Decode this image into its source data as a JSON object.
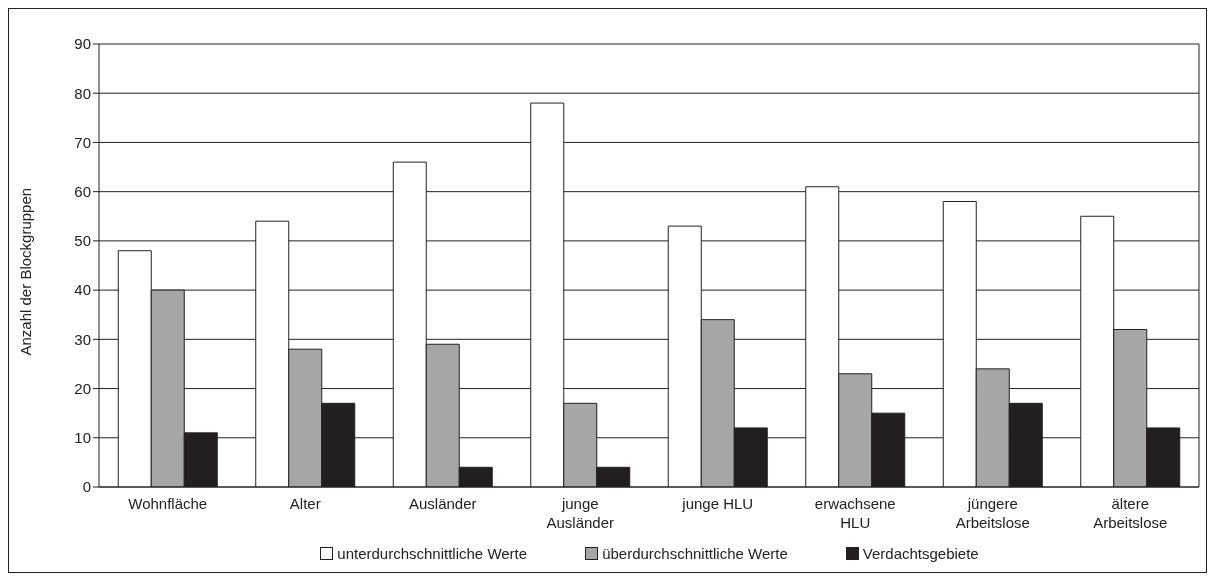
{
  "chart_data": {
    "type": "bar",
    "ylabel": "Anzahl der Blockgruppen",
    "categories": [
      "Wohnfläche",
      "Alter",
      "Ausländer",
      "junge\nAusländer",
      "junge HLU",
      "erwachsene\nHLU",
      "jüngere\nArbeitslose",
      "ältere\nArbeitslose"
    ],
    "series": [
      {
        "name": "unterdurchschnittliche Werte",
        "color": "#ffffff",
        "values": [
          48,
          54,
          66,
          78,
          53,
          61,
          58,
          55
        ]
      },
      {
        "name": "überdurchschnittliche Werte",
        "color": "#a6a6a6",
        "values": [
          40,
          28,
          29,
          17,
          34,
          23,
          24,
          32
        ]
      },
      {
        "name": "Verdachtsgebiete",
        "color": "#231f20",
        "values": [
          11,
          17,
          4,
          4,
          12,
          15,
          17,
          12
        ]
      }
    ],
    "ylim": [
      0,
      90
    ],
    "yticks": [
      0,
      10,
      20,
      30,
      40,
      50,
      60,
      70,
      80,
      90
    ],
    "grid": "y",
    "legend": "bottom"
  }
}
